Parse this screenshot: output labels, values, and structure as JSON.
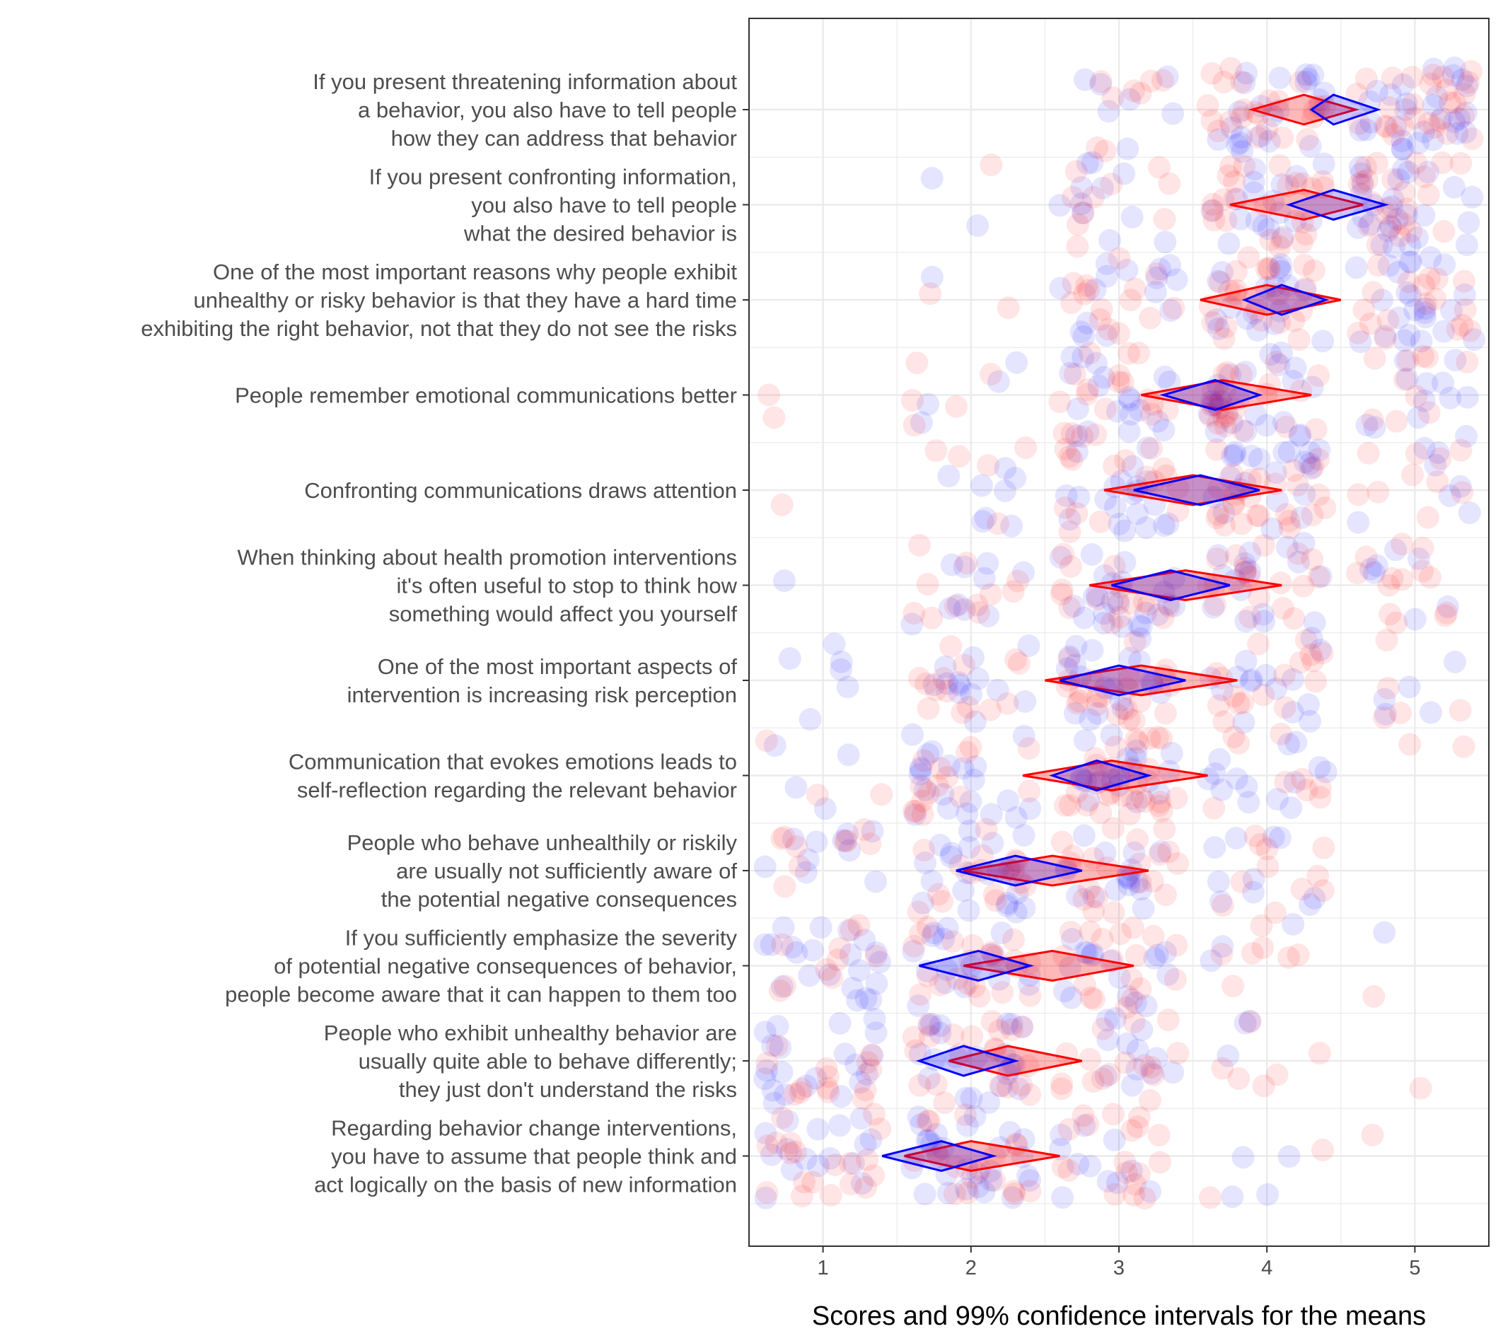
{
  "chart_data": {
    "type": "scatter",
    "xlabel": "Scores and 99% confidence intervals for the means",
    "xlim": [
      0.5,
      5.5
    ],
    "xticks": [
      "1",
      "2",
      "3",
      "4",
      "5"
    ],
    "grid": true,
    "legend": "none",
    "series": [
      {
        "color": "#0000ff"
      },
      {
        "color": "#ff0000"
      }
    ],
    "items": [
      {
        "label": [
          "If you present threatening information about",
          "a behavior, you also have to tell people",
          "how they can address that behavior"
        ],
        "blue": {
          "lower": 4.3,
          "mean": 4.45,
          "upper": 4.75
        },
        "red": {
          "lower": 3.9,
          "mean": 4.25,
          "upper": 4.6
        }
      },
      {
        "label": [
          "If you present confronting information,",
          "you also have to tell people",
          "what the desired behavior is"
        ],
        "blue": {
          "lower": 4.15,
          "mean": 4.45,
          "upper": 4.8
        },
        "red": {
          "lower": 3.75,
          "mean": 4.25,
          "upper": 4.65
        }
      },
      {
        "label": [
          "One of the most important reasons why people exhibit",
          "unhealthy or risky behavior is that they have a hard time",
          "exhibiting the right behavior, not that they do not see the risks"
        ],
        "blue": {
          "lower": 3.85,
          "mean": 4.1,
          "upper": 4.4
        },
        "red": {
          "lower": 3.55,
          "mean": 4.0,
          "upper": 4.5
        }
      },
      {
        "label": [
          "People remember emotional communications better"
        ],
        "blue": {
          "lower": 3.3,
          "mean": 3.65,
          "upper": 3.95
        },
        "red": {
          "lower": 3.15,
          "mean": 3.7,
          "upper": 4.3
        }
      },
      {
        "label": [
          "Confronting communications draws attention"
        ],
        "blue": {
          "lower": 3.1,
          "mean": 3.55,
          "upper": 3.95
        },
        "red": {
          "lower": 2.9,
          "mean": 3.5,
          "upper": 4.1
        }
      },
      {
        "label": [
          "When thinking about health promotion interventions",
          "it's often useful to stop to think how",
          "something would affect you yourself"
        ],
        "blue": {
          "lower": 2.95,
          "mean": 3.35,
          "upper": 3.75
        },
        "red": {
          "lower": 2.8,
          "mean": 3.45,
          "upper": 4.1
        }
      },
      {
        "label": [
          "One of the most important aspects of",
          "intervention is increasing risk perception"
        ],
        "blue": {
          "lower": 2.6,
          "mean": 3.0,
          "upper": 3.45
        },
        "red": {
          "lower": 2.5,
          "mean": 3.15,
          "upper": 3.8
        }
      },
      {
        "label": [
          "Communication that evokes emotions leads to",
          "self-reflection regarding the relevant behavior"
        ],
        "blue": {
          "lower": 2.55,
          "mean": 2.85,
          "upper": 3.2
        },
        "red": {
          "lower": 2.35,
          "mean": 2.95,
          "upper": 3.6
        }
      },
      {
        "label": [
          "People who behave unhealthily or riskily",
          "are usually not sufficiently aware of",
          "the potential negative consequences"
        ],
        "blue": {
          "lower": 1.9,
          "mean": 2.3,
          "upper": 2.75
        },
        "red": {
          "lower": 1.95,
          "mean": 2.55,
          "upper": 3.2
        }
      },
      {
        "label": [
          "If you sufficiently emphasize the severity",
          "of potential negative consequences of behavior,",
          "people become aware that it can happen to them too"
        ],
        "blue": {
          "lower": 1.65,
          "mean": 2.05,
          "upper": 2.4
        },
        "red": {
          "lower": 1.95,
          "mean": 2.55,
          "upper": 3.1
        }
      },
      {
        "label": [
          "People who exhibit unhealthy behavior are",
          "usually quite able to behave differently;",
          "they just don't understand the risks"
        ],
        "blue": {
          "lower": 1.65,
          "mean": 1.95,
          "upper": 2.3
        },
        "red": {
          "lower": 1.85,
          "mean": 2.25,
          "upper": 2.75
        }
      },
      {
        "label": [
          "Regarding behavior change interventions,",
          "you have to assume that people think and",
          "act logically on the basis of new information"
        ],
        "blue": {
          "lower": 1.4,
          "mean": 1.8,
          "upper": 2.15
        },
        "red": {
          "lower": 1.55,
          "mean": 2.0,
          "upper": 2.6
        }
      }
    ]
  }
}
